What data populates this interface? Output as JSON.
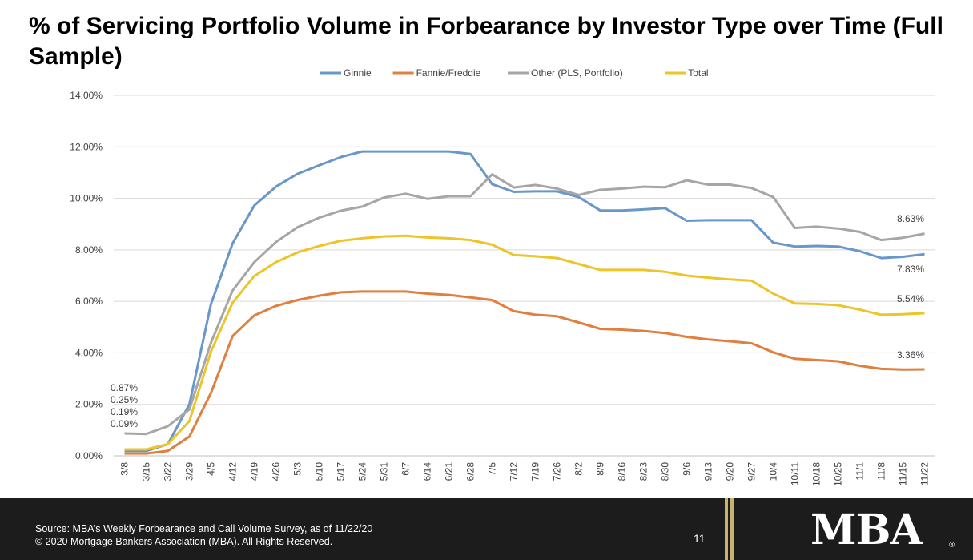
{
  "slide": {
    "title": "% of Servicing Portfolio Volume in Forbearance by Investor Type over Time (Full Sample)"
  },
  "footer": {
    "source_line1": "Source: MBA’s Weekly Forbearance and Call Volume Survey, as of 11/22/20",
    "source_line2": "© 2020 Mortgage Bankers Association (MBA). All Rights Reserved.",
    "page_number": "11",
    "logo_text": "MBA",
    "logo_mark": "®",
    "accent_color": "#c7b370"
  },
  "chart_data": {
    "type": "line",
    "title": "",
    "xlabel": "",
    "ylabel": "",
    "ylim": [
      0,
      14
    ],
    "y_ticks": [
      "0.00%",
      "2.00%",
      "4.00%",
      "6.00%",
      "8.00%",
      "10.00%",
      "12.00%",
      "14.00%"
    ],
    "y_tick_values": [
      0,
      2,
      4,
      6,
      8,
      10,
      12,
      14
    ],
    "grid": "horizontal",
    "legend_position": "top",
    "categories": [
      "3/8",
      "3/15",
      "3/22",
      "3/29",
      "4/5",
      "4/12",
      "4/19",
      "4/26",
      "5/3",
      "5/10",
      "5/17",
      "5/24",
      "5/31",
      "6/7",
      "6/14",
      "6/21",
      "6/28",
      "7/5",
      "7/12",
      "7/19",
      "7/26",
      "8/2",
      "8/9",
      "8/16",
      "8/23",
      "8/30",
      "9/6",
      "9/13",
      "9/20",
      "9/27",
      "10/4",
      "10/11",
      "10/18",
      "10/25",
      "11/1",
      "11/8",
      "11/15",
      "11/22"
    ],
    "series": [
      {
        "name": "Ginnie",
        "color": "#6a97c9",
        "values": [
          0.19,
          0.19,
          0.45,
          2.0,
          5.9,
          8.25,
          9.72,
          10.45,
          10.95,
          11.28,
          11.6,
          11.82,
          11.82,
          11.82,
          11.82,
          11.82,
          11.72,
          10.55,
          10.25,
          10.27,
          10.27,
          10.05,
          9.53,
          9.53,
          9.57,
          9.62,
          9.13,
          9.15,
          9.15,
          9.15,
          8.28,
          8.13,
          8.15,
          8.13,
          7.95,
          7.68,
          7.73,
          7.83
        ]
      },
      {
        "name": "Fannie/Freddie",
        "color": "#e07f3f",
        "values": [
          0.09,
          0.09,
          0.19,
          0.75,
          2.45,
          4.65,
          5.45,
          5.82,
          6.05,
          6.22,
          6.35,
          6.38,
          6.38,
          6.38,
          6.3,
          6.25,
          6.15,
          6.05,
          5.62,
          5.48,
          5.42,
          5.18,
          4.93,
          4.9,
          4.85,
          4.77,
          4.62,
          4.52,
          4.45,
          4.37,
          4.02,
          3.77,
          3.72,
          3.67,
          3.5,
          3.38,
          3.35,
          3.36
        ]
      },
      {
        "name": "Other (PLS, Portfolio)",
        "color": "#a6a6a6",
        "values": [
          0.87,
          0.85,
          1.15,
          1.8,
          4.4,
          6.42,
          7.52,
          8.3,
          8.88,
          9.25,
          9.52,
          9.68,
          10.03,
          10.18,
          9.98,
          10.08,
          10.08,
          10.93,
          10.42,
          10.52,
          10.38,
          10.13,
          10.33,
          10.38,
          10.45,
          10.43,
          10.7,
          10.53,
          10.53,
          10.4,
          10.05,
          8.85,
          8.9,
          8.83,
          8.7,
          8.38,
          8.47,
          8.63
        ]
      },
      {
        "name": "Total",
        "color": "#ecc52a",
        "values": [
          0.25,
          0.25,
          0.45,
          1.35,
          4.05,
          5.95,
          6.98,
          7.52,
          7.9,
          8.15,
          8.35,
          8.45,
          8.52,
          8.55,
          8.48,
          8.45,
          8.38,
          8.2,
          7.8,
          7.75,
          7.68,
          7.45,
          7.22,
          7.22,
          7.22,
          7.15,
          7.0,
          6.92,
          6.85,
          6.8,
          6.3,
          5.92,
          5.9,
          5.85,
          5.68,
          5.48,
          5.5,
          5.54
        ]
      }
    ],
    "annotations": [
      {
        "text": "0.87%",
        "series": "Other (PLS, Portfolio)",
        "category": "3/8"
      },
      {
        "text": "0.25%",
        "series": "Total",
        "category": "3/8"
      },
      {
        "text": "0.19%",
        "series": "Ginnie",
        "category": "3/8"
      },
      {
        "text": "0.09%",
        "series": "Fannie/Freddie",
        "category": "3/8"
      },
      {
        "text": "8.63%",
        "series": "Other (PLS, Portfolio)",
        "category": "11/22"
      },
      {
        "text": "7.83%",
        "series": "Ginnie",
        "category": "11/22"
      },
      {
        "text": "5.54%",
        "series": "Total",
        "category": "11/22"
      },
      {
        "text": "3.36%",
        "series": "Fannie/Freddie",
        "category": "11/22"
      }
    ]
  }
}
